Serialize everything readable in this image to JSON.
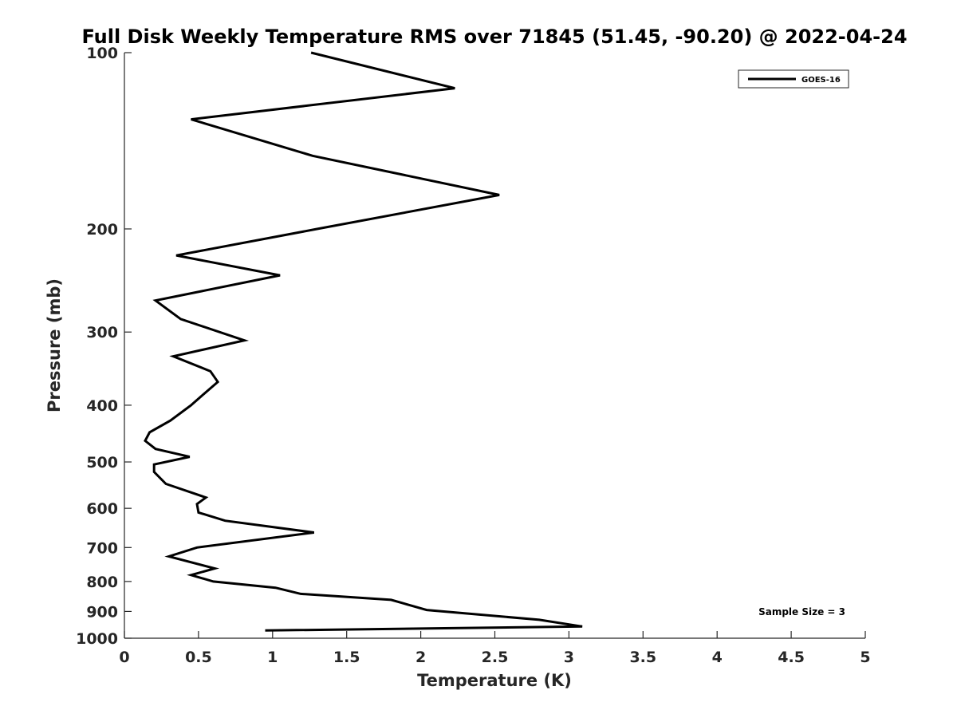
{
  "chart_data": {
    "type": "line",
    "title": "Full Disk Weekly Temperature RMS over 71845 (51.45, -90.20) @ 2022-04-24",
    "xlabel": "Temperature (K)",
    "ylabel": "Pressure (mb)",
    "xlim": [
      0,
      5
    ],
    "ylim": [
      100,
      1000
    ],
    "y_scale": "log",
    "y_reversed": true,
    "xticks": [
      "0",
      "0.5",
      "1",
      "1.5",
      "2",
      "2.5",
      "3",
      "3.5",
      "4",
      "4.5",
      "5"
    ],
    "yticks": [
      "100",
      "200",
      "300",
      "400",
      "500",
      "600",
      "700",
      "800",
      "900",
      "1000"
    ],
    "grid": false,
    "legend_position": "top-right",
    "annotation": "Sample Size = 3",
    "series": [
      {
        "name": "GOES-16",
        "color": "#000000",
        "x": [
          1.26,
          2.23,
          0.45,
          1.27,
          2.53,
          1.3,
          0.35,
          1.05,
          0.21,
          0.38,
          0.81,
          0.33,
          0.58,
          0.63,
          0.55,
          0.45,
          0.31,
          0.17,
          0.14,
          0.21,
          0.44,
          0.2,
          0.2,
          0.28,
          0.55,
          0.49,
          0.5,
          0.68,
          1.28,
          0.49,
          0.3,
          0.61,
          0.45,
          0.6,
          1.02,
          1.19,
          1.8,
          1.87,
          2.04,
          2.8,
          3.09,
          0.95
        ],
        "y": [
          100,
          115,
          130,
          150,
          175,
          200,
          222,
          240,
          265,
          285,
          310,
          330,
          350,
          365,
          380,
          400,
          425,
          445,
          460,
          475,
          490,
          505,
          520,
          545,
          575,
          590,
          610,
          630,
          660,
          700,
          725,
          760,
          780,
          800,
          820,
          840,
          860,
          870,
          895,
          930,
          955,
          970
        ]
      }
    ]
  }
}
